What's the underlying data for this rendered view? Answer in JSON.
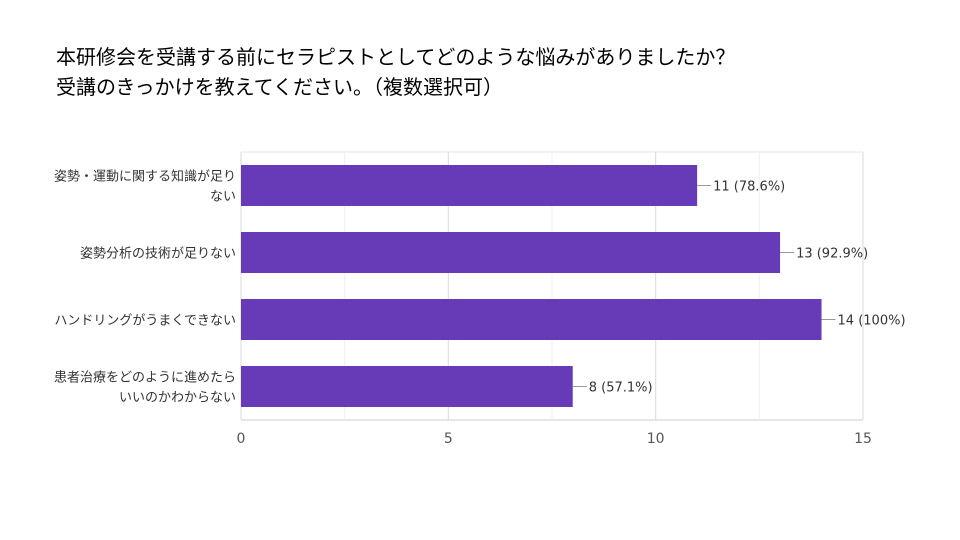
{
  "title": {
    "line1": "本研修会を受講する前にセラピストとしてどのような悩みがありましたか？",
    "line2": "受講のきっかけを教えてください。（複数選択可）"
  },
  "chart_data": {
    "type": "bar",
    "orientation": "horizontal",
    "title": "本研修会を受講する前にセラピストとしてどのような悩みがありましたか？ 受講のきっかけを教えてください。（複数選択可）",
    "categories": [
      [
        "姿勢・運動に関する知識が足り",
        "ない"
      ],
      [
        "姿勢分析の技術が足りない"
      ],
      [
        "ハンドリングがうまくできない"
      ],
      [
        "患者治療をどのように進めたら",
        "いいのかわからない"
      ]
    ],
    "values": [
      11,
      13,
      14,
      8
    ],
    "data_labels": [
      "11 (78.6%)",
      "13 (92.9%)",
      "14 (100%)",
      "8 (57.1%)"
    ],
    "xlim": [
      0,
      15
    ],
    "x_ticks": [
      "0",
      "5",
      "10",
      "15"
    ],
    "grid": true,
    "bar_color": "#673ab7"
  }
}
